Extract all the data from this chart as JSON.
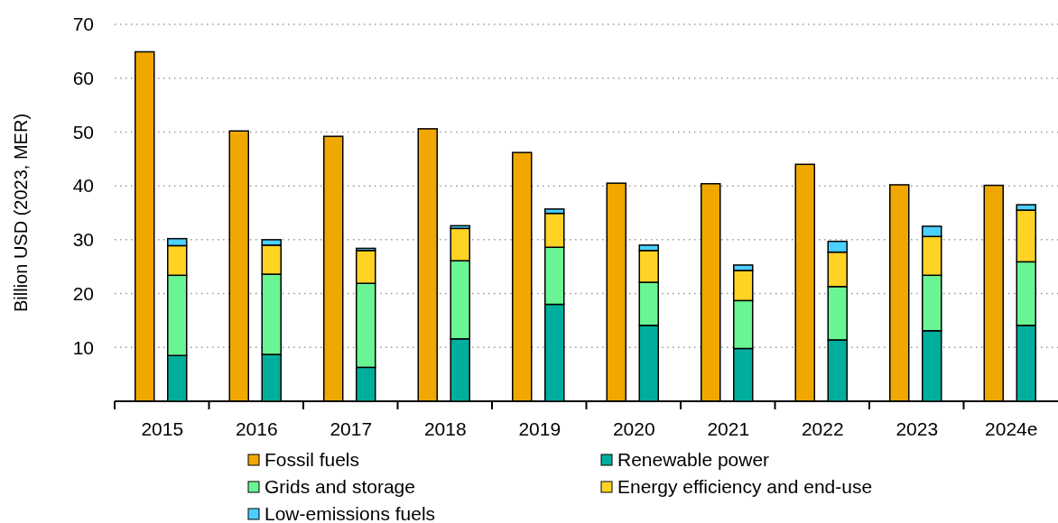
{
  "chart_data": [
    {
      "type": "bar",
      "ylabel": "Billion USD (2023, MER)",
      "categories": [
        "2015",
        "2016",
        "2017",
        "2018",
        "2019",
        "2020",
        "2021",
        "2022",
        "2023",
        "2024e"
      ],
      "series": [
        {
          "name": "Fossil fuels",
          "color": "#f0a800",
          "values": [
            64.9,
            50.2,
            49.2,
            50.6,
            46.2,
            40.5,
            40.4,
            44.0,
            40.2,
            40.1
          ]
        }
      ],
      "ylim": [
        0,
        70
      ],
      "yticks": [
        10,
        20,
        30,
        40,
        50,
        60,
        70
      ],
      "grid": "y",
      "legend": "bottom"
    },
    {
      "type": "bar",
      "stacked": true,
      "categories": [
        null,
        null,
        null,
        null,
        null,
        null,
        null,
        null,
        null,
        null
      ],
      "series": [
        {
          "name": "Renewable power",
          "color": "#00ae9e",
          "values": [
            8.5,
            8.7,
            6.3,
            11.6,
            18.0,
            14.1,
            9.8,
            11.4,
            13.1,
            14.1
          ]
        },
        {
          "name": "Grids and storage",
          "color": "#6af594",
          "values": [
            14.9,
            14.9,
            15.6,
            14.5,
            10.6,
            8.0,
            8.9,
            9.9,
            10.3,
            11.8
          ]
        },
        {
          "name": "Energy efficiency and end-use",
          "color": "#ffd324",
          "values": [
            5.5,
            5.4,
            6.1,
            6.0,
            6.3,
            5.9,
            5.6,
            6.4,
            7.2,
            9.6
          ]
        },
        {
          "name": "Low-emissions fuels",
          "color": "#4bd0ff",
          "values": [
            1.3,
            1.0,
            0.4,
            0.5,
            0.8,
            1.0,
            1.0,
            2.0,
            1.9,
            1.0
          ]
        }
      ],
      "ylim": [
        0,
        70
      ],
      "tick_labels": false,
      "legend": "bottom"
    }
  ]
}
